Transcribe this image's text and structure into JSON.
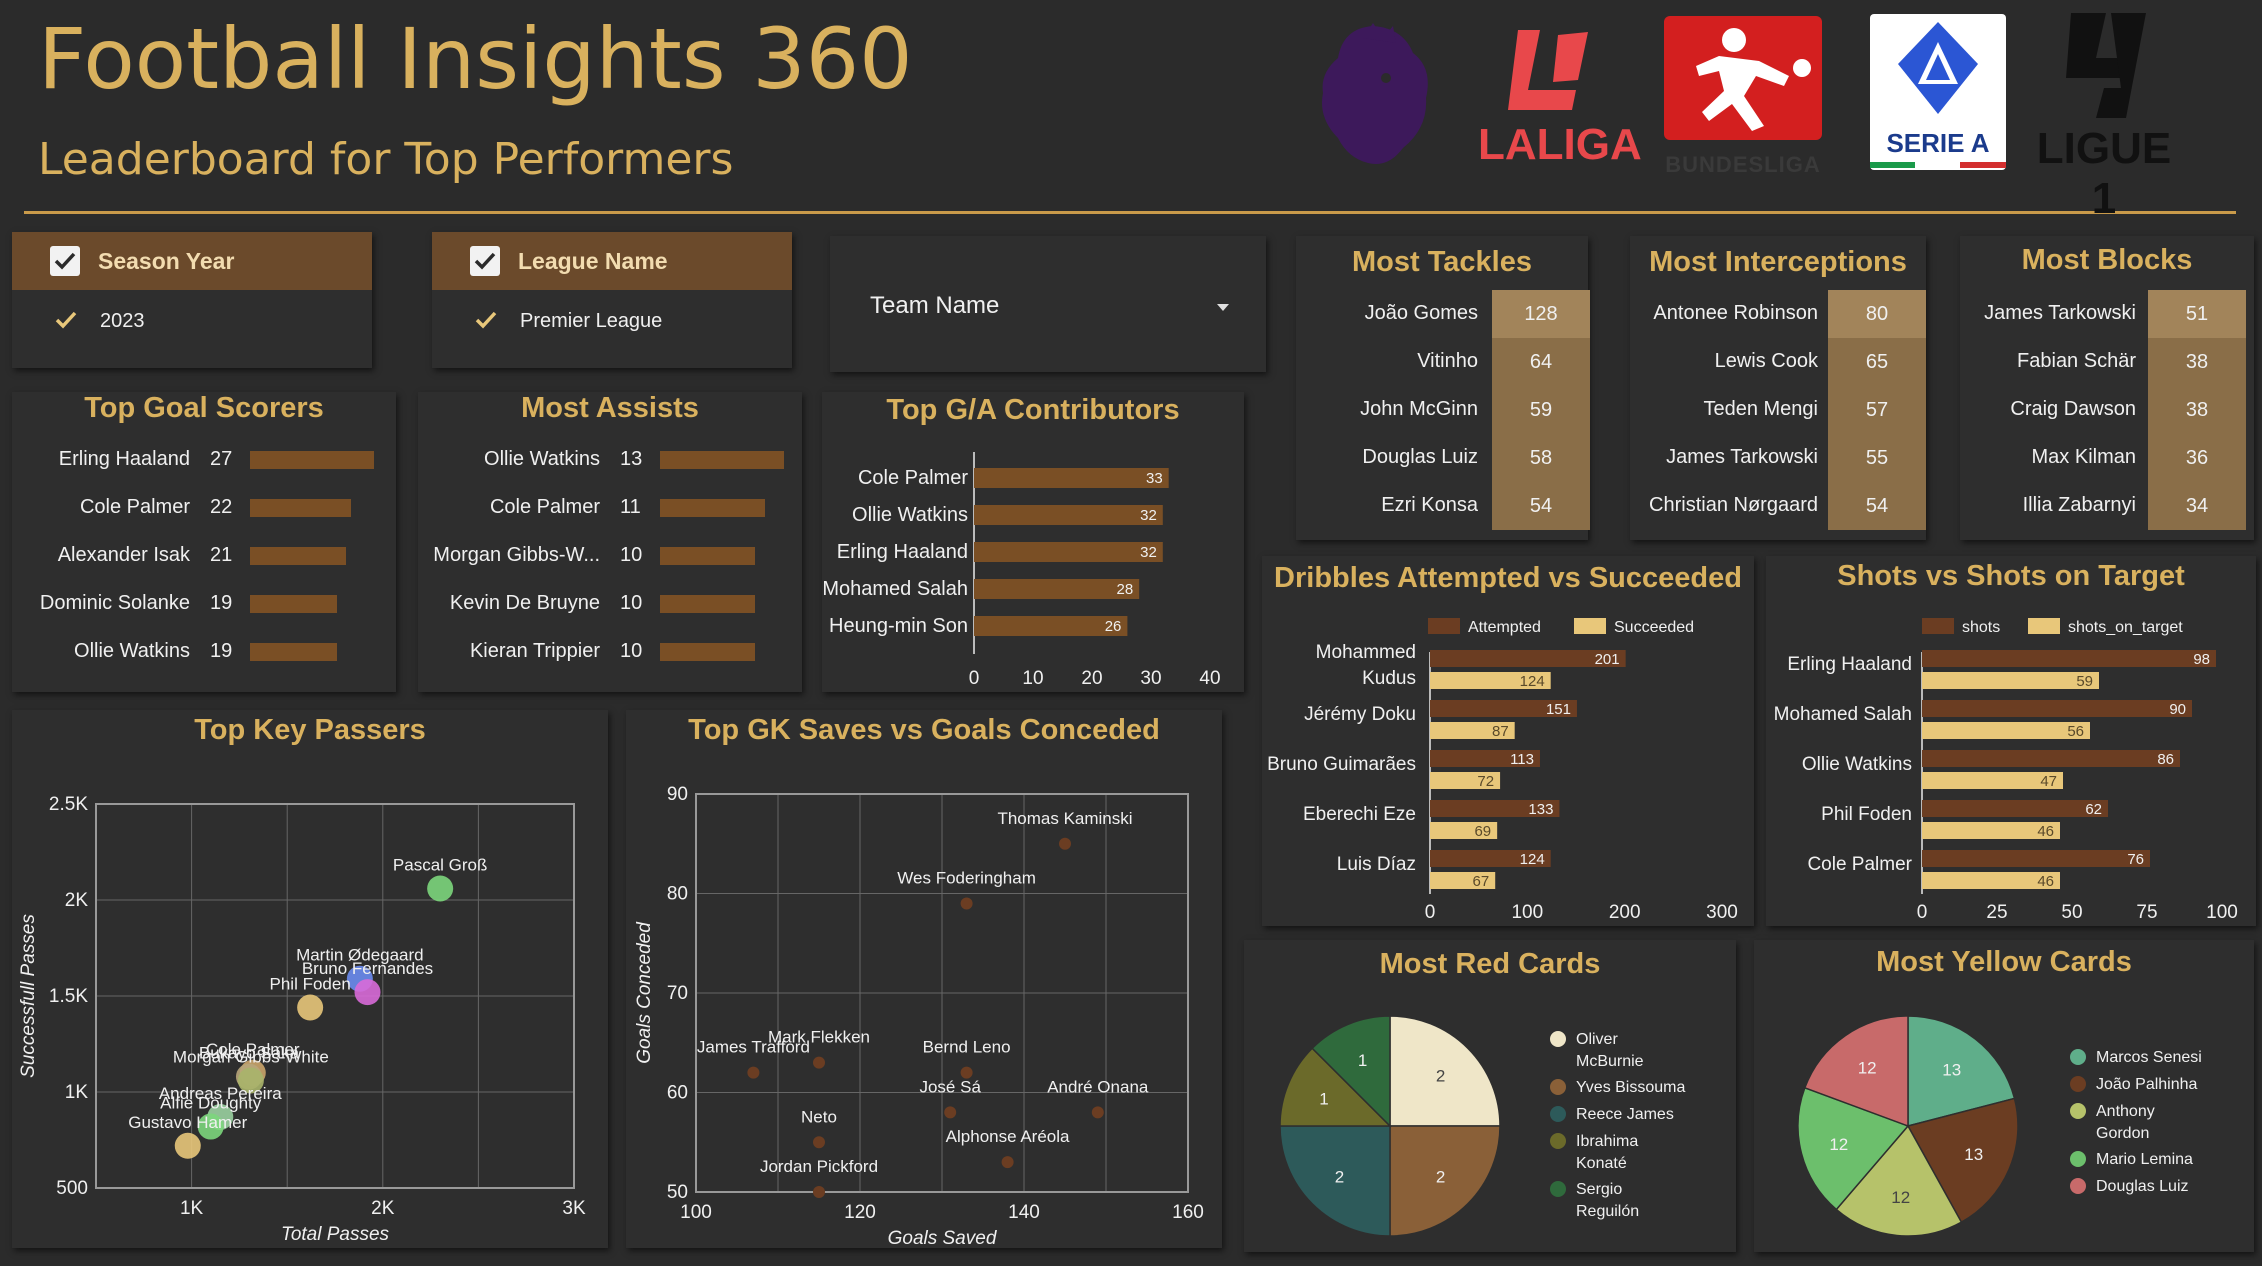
{
  "header": {
    "title": "Football Insights 360",
    "subtitle": "Leaderboard for Top Performers",
    "logos": [
      "Premier League lion logo",
      "LALIGA",
      "BUNDESLIGA",
      "SERIE A",
      "LIGUE 1"
    ]
  },
  "colors": {
    "accent": "#d9b15e",
    "bar_brown": "#7a4f25",
    "bar_dark": "#6b3d22",
    "bar_light": "#e8c77a",
    "panel_bg": "#2e2e2e",
    "page_bg": "#2b2b2b"
  },
  "filters": {
    "season": {
      "label": "Season Year",
      "value": "2023"
    },
    "league": {
      "label": "League Name",
      "value": "Premier League"
    },
    "team": {
      "label": "Team Name"
    }
  },
  "top_goal_scorers": {
    "title": "Top Goal Scorers",
    "rows": [
      {
        "name": "Erling Haaland",
        "value": "27"
      },
      {
        "name": "Cole Palmer",
        "value": "22"
      },
      {
        "name": "Alexander Isak",
        "value": "21"
      },
      {
        "name": "Dominic Solanke",
        "value": "19"
      },
      {
        "name": "Ollie Watkins",
        "value": "19"
      }
    ]
  },
  "most_assists": {
    "title": "Most Assists",
    "rows": [
      {
        "name": "Ollie Watkins",
        "value": "13"
      },
      {
        "name": "Cole Palmer",
        "value": "11"
      },
      {
        "name": "Morgan Gibbs-W...",
        "value": "10"
      },
      {
        "name": "Kevin De Bruyne",
        "value": "10"
      },
      {
        "name": "Kieran Trippier",
        "value": "10"
      }
    ]
  },
  "tackles": {
    "title": "Most Tackles",
    "rows": [
      {
        "name": "João Gomes",
        "value": "128"
      },
      {
        "name": "Vitinho",
        "value": "64"
      },
      {
        "name": "John McGinn",
        "value": "59"
      },
      {
        "name": "Douglas Luiz",
        "value": "58"
      },
      {
        "name": "Ezri Konsa",
        "value": "54"
      }
    ]
  },
  "interceptions": {
    "title": "Most Interceptions",
    "rows": [
      {
        "name": "Antonee Robinson",
        "value": "80"
      },
      {
        "name": "Lewis Cook",
        "value": "65"
      },
      {
        "name": "Teden Mengi",
        "value": "57"
      },
      {
        "name": "James Tarkowski",
        "value": "55"
      },
      {
        "name": "Christian Nørgaard",
        "value": "54"
      }
    ]
  },
  "blocks": {
    "title": "Most Blocks",
    "rows": [
      {
        "name": "James Tarkowski",
        "value": "51"
      },
      {
        "name": "Fabian Schär",
        "value": "38"
      },
      {
        "name": "Craig Dawson",
        "value": "38"
      },
      {
        "name": "Max Kilman",
        "value": "36"
      },
      {
        "name": "Illia Zabarnyi",
        "value": "34"
      }
    ]
  },
  "chart_data": [
    {
      "id": "ga",
      "type": "bar",
      "orientation": "horizontal",
      "title": "Top G/A Contributors",
      "categories": [
        "Cole Palmer",
        "Ollie Watkins",
        "Erling Haaland",
        "Mohamed Salah",
        "Heung-min Son"
      ],
      "values": [
        33,
        32,
        32,
        28,
        26
      ],
      "xlim": [
        0,
        40
      ],
      "xticks": [
        "0",
        "10",
        "20",
        "30",
        "40"
      ]
    },
    {
      "id": "dribbles",
      "type": "bar",
      "orientation": "horizontal",
      "title": "Dribbles Attempted vs Succeeded",
      "categories": [
        "Mohammed Kudus",
        "Jérémy Doku",
        "Bruno Guimarães",
        "Eberechi Eze",
        "Luis Díaz"
      ],
      "series": [
        {
          "name": "Attempted",
          "values": [
            201,
            151,
            113,
            133,
            124
          ]
        },
        {
          "name": "Succeeded",
          "values": [
            124,
            87,
            72,
            69,
            67
          ]
        }
      ],
      "xlim": [
        0,
        300
      ],
      "xticks": [
        "0",
        "100",
        "200",
        "300"
      ],
      "legend": "top"
    },
    {
      "id": "shots",
      "type": "bar",
      "orientation": "horizontal",
      "title": "Shots vs Shots on Target",
      "categories": [
        "Erling Haaland",
        "Mohamed Salah",
        "Ollie Watkins",
        "Phil Foden",
        "Cole Palmer"
      ],
      "series": [
        {
          "name": "shots",
          "values": [
            98,
            90,
            86,
            62,
            76
          ]
        },
        {
          "name": "shots_on_target",
          "values": [
            59,
            56,
            47,
            46,
            46
          ]
        }
      ],
      "xlim": [
        0,
        100
      ],
      "xticks": [
        "0",
        "25",
        "50",
        "75",
        "100"
      ],
      "legend": "top"
    },
    {
      "id": "keypass",
      "type": "scatter",
      "title": "Top Key Passers",
      "xlabel": "Total Passes",
      "ylabel": "Successfull Passes",
      "xlim": [
        500,
        3000
      ],
      "ylim": [
        500,
        2500
      ],
      "xticks": [
        {
          "v": 1000,
          "t": "1K"
        },
        {
          "v": 2000,
          "t": "2K"
        },
        {
          "v": 3000,
          "t": "3K"
        }
      ],
      "yticks": [
        {
          "v": 500,
          "t": "500"
        },
        {
          "v": 1000,
          "t": "1K"
        },
        {
          "v": 1500,
          "t": "1.5K"
        },
        {
          "v": 2000,
          "t": "2K"
        },
        {
          "v": 2500,
          "t": "2.5K"
        }
      ],
      "points": [
        {
          "label": "Pascal Groß",
          "x": 2300,
          "y": 2060,
          "color": "#7cd67c"
        },
        {
          "label": "Martin Ødegaard",
          "x": 1880,
          "y": 1590,
          "color": "#6b8cf0"
        },
        {
          "label": "Bruno Fernandes",
          "x": 1920,
          "y": 1520,
          "color": "#d86ad8"
        },
        {
          "label": "Phil Foden",
          "x": 1620,
          "y": 1440,
          "color": "#e8c77a"
        },
        {
          "label": "Cole Palmer",
          "x": 1320,
          "y": 1100,
          "color": "#caa46a"
        },
        {
          "label": "Bukayo Saka",
          "x": 1300,
          "y": 1080,
          "color": "#b8a57a"
        },
        {
          "label": "Morgan Gibbs-White",
          "x": 1310,
          "y": 1060,
          "color": "#a8b46a"
        },
        {
          "label": "Andreas Pereira",
          "x": 1150,
          "y": 870,
          "color": "#9ad0a0"
        },
        {
          "label": "Alfie Doughty",
          "x": 1100,
          "y": 820,
          "color": "#7cd67c"
        },
        {
          "label": "Gustavo Hamer",
          "x": 980,
          "y": 720,
          "color": "#e8c77a"
        }
      ]
    },
    {
      "id": "gk",
      "type": "scatter",
      "title": "Top GK Saves vs Goals Conceded",
      "xlabel": "Goals Saved",
      "ylabel": "Goals Conceded",
      "xlim": [
        100,
        160
      ],
      "ylim": [
        50,
        90
      ],
      "xticks": [
        {
          "v": 100,
          "t": "100"
        },
        {
          "v": 120,
          "t": "120"
        },
        {
          "v": 140,
          "t": "140"
        },
        {
          "v": 160,
          "t": "160"
        }
      ],
      "yticks": [
        {
          "v": 50,
          "t": "50"
        },
        {
          "v": 60,
          "t": "60"
        },
        {
          "v": 70,
          "t": "70"
        },
        {
          "v": 80,
          "t": "80"
        },
        {
          "v": 90,
          "t": "90"
        }
      ],
      "points": [
        {
          "label": "Thomas Kaminski",
          "x": 145,
          "y": 85
        },
        {
          "label": "Wes Foderingham",
          "x": 133,
          "y": 79
        },
        {
          "label": "James Trafford",
          "x": 107,
          "y": 62
        },
        {
          "label": "Mark Flekken",
          "x": 115,
          "y": 63
        },
        {
          "label": "Bernd Leno",
          "x": 133,
          "y": 62
        },
        {
          "label": "José Sá",
          "x": 131,
          "y": 58
        },
        {
          "label": "André Onana",
          "x": 149,
          "y": 58
        },
        {
          "label": "Neto",
          "x": 115,
          "y": 55
        },
        {
          "label": "Alphonse Aréola",
          "x": 138,
          "y": 53
        },
        {
          "label": "Jordan Pickford",
          "x": 115,
          "y": 50
        }
      ]
    },
    {
      "id": "red",
      "type": "pie",
      "title": "Most Red Cards",
      "slices": [
        {
          "name": "Oliver McBurnie",
          "value": 2,
          "color": "#efe6c8"
        },
        {
          "name": "Yves Bissouma",
          "value": 2,
          "color": "#8a6038"
        },
        {
          "name": "Reece James",
          "value": 2,
          "color": "#2d5a5a"
        },
        {
          "name": "Ibrahima Konaté",
          "value": 1,
          "color": "#6b6a2a"
        },
        {
          "name": "Sergio Reguilón",
          "value": 1,
          "color": "#2f6a3c"
        }
      ],
      "legend": "right"
    },
    {
      "id": "yellow",
      "type": "pie",
      "title": "Most Yellow Cards",
      "slices": [
        {
          "name": "Marcos Senesi",
          "value": 13,
          "color": "#5fae8a"
        },
        {
          "name": "João Palhinha",
          "value": 13,
          "color": "#6b3d22"
        },
        {
          "name": "Anthony Gordon",
          "value": 12,
          "color": "#b6c26a"
        },
        {
          "name": "Mario Lemina",
          "value": 12,
          "color": "#6cbf6c"
        },
        {
          "name": "Douglas Luiz",
          "value": 12,
          "color": "#c86a6a"
        }
      ],
      "legend": "right"
    }
  ]
}
